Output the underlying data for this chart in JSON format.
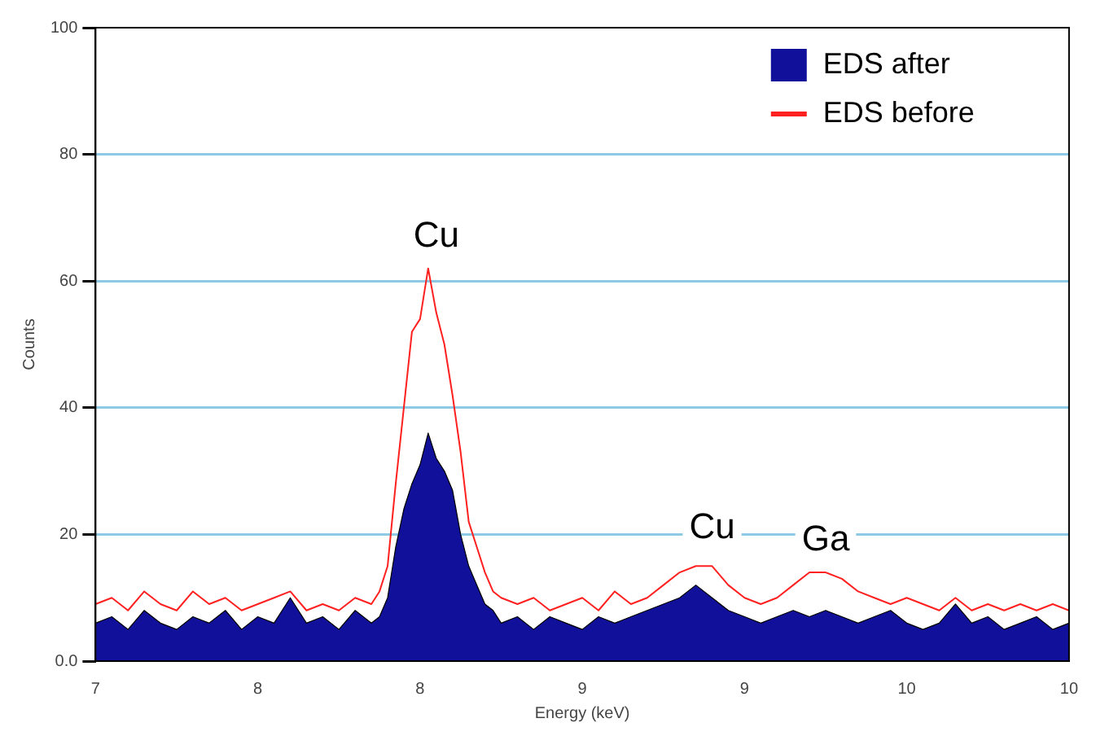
{
  "chart_data": {
    "type": "area",
    "xlabel": "Energy (keV)",
    "ylabel": "Counts",
    "x": [
      7,
      7.05,
      7.1,
      7.15,
      7.2,
      7.25,
      7.3,
      7.35,
      7.4,
      7.45,
      7.5,
      7.55,
      7.6,
      7.65,
      7.7,
      7.75,
      7.8,
      7.85,
      7.875,
      7.9,
      7.925,
      7.95,
      7.975,
      8,
      8.025,
      8.05,
      8.075,
      8.1,
      8.125,
      8.15,
      8.175,
      8.2,
      8.225,
      8.25,
      8.3,
      8.35,
      8.4,
      8.45,
      8.5,
      8.55,
      8.6,
      8.65,
      8.7,
      8.75,
      8.8,
      8.85,
      8.9,
      8.95,
      9,
      9.05,
      9.1,
      9.15,
      9.2,
      9.25,
      9.3,
      9.35,
      9.4,
      9.45,
      9.5,
      9.55,
      9.6,
      9.65,
      9.7,
      9.75,
      9.8,
      9.85,
      9.9,
      9.95,
      10
    ],
    "series": [
      {
        "name": "EDS after",
        "color": "#10109a",
        "values": [
          6,
          7,
          5,
          8,
          6,
          5,
          7,
          6,
          8,
          5,
          7,
          6,
          10,
          6,
          7,
          5,
          8,
          6,
          7,
          10,
          18,
          24,
          28,
          31,
          36,
          32,
          30,
          27,
          20,
          15,
          12,
          9,
          8,
          6,
          7,
          5,
          7,
          6,
          5,
          7,
          6,
          7,
          8,
          9,
          10,
          12,
          10,
          8,
          7,
          6,
          7,
          8,
          7,
          8,
          7,
          6,
          7,
          8,
          6,
          5,
          6,
          9,
          6,
          7,
          5,
          6,
          7,
          5,
          6
        ]
      },
      {
        "name": "EDS before",
        "type": "line",
        "color": "#ff2020",
        "values": [
          9,
          10,
          8,
          11,
          9,
          8,
          11,
          9,
          10,
          8,
          9,
          10,
          11,
          8,
          9,
          8,
          10,
          9,
          11,
          15,
          28,
          40,
          52,
          54,
          62,
          55,
          50,
          42,
          33,
          22,
          18,
          14,
          11,
          10,
          9,
          10,
          8,
          9,
          10,
          8,
          11,
          9,
          10,
          12,
          14,
          15,
          15,
          12,
          10,
          9,
          10,
          12,
          14,
          14,
          13,
          11,
          10,
          9,
          10,
          9,
          8,
          10,
          8,
          9,
          8,
          9,
          8,
          9,
          8
        ]
      }
    ],
    "xlim": [
      7,
      10
    ],
    "xticks": [
      7,
      {
        "value": 7.5,
        "label": "8"
      },
      8,
      {
        "value": 8.5,
        "label": "9"
      },
      9,
      {
        "value": 9.5,
        "label": "10"
      },
      10
    ],
    "ylim": [
      0,
      100
    ],
    "yticks": [
      {
        "value": 0,
        "label": "0.0"
      },
      20,
      40,
      60,
      80,
      100
    ],
    "grid": "y",
    "legend": "top right",
    "annotations": [
      {
        "text": "Cu",
        "x": 8.05,
        "y": 67
      },
      {
        "text": "Cu",
        "x": 8.9,
        "y": 21
      },
      {
        "text": "Ga",
        "x": 9.25,
        "y": 19
      }
    ]
  }
}
